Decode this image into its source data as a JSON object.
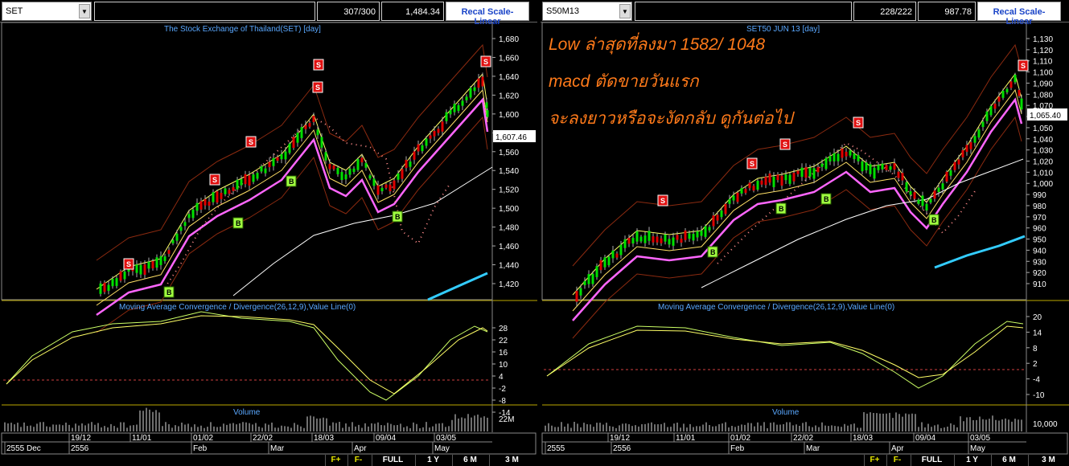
{
  "left": {
    "symbol": "SET",
    "count": "307/300",
    "price": "1,484.34",
    "recal": "Recal Scale-Linear",
    "title": "The Stock Exchange of Thailand(SET) [day]",
    "last": "1,607.46",
    "y_ticks": [
      "1,680",
      "1,660",
      "1,640",
      "1,620",
      "1,600",
      "1,580",
      "1,560",
      "1,540",
      "1,520",
      "1,500",
      "1,480",
      "1,460",
      "1,440",
      "1,420"
    ],
    "macd_title": "Moving Average Convergence / Divergence(26,12,9),Value Line(0)",
    "macd_ticks": [
      "28",
      "22",
      "16",
      "10",
      "4",
      "-2",
      "-8",
      "-14"
    ],
    "volume_title": "Volume",
    "volume_tick": "22M",
    "date_top": [
      "19/12",
      "11/01",
      "01/02",
      "22/02",
      "18/03",
      "09/04",
      "03/05"
    ],
    "date_bottom": [
      "2555 Dec",
      "2556",
      "Feb",
      "Mar",
      "Apr",
      "May"
    ],
    "signals": [
      "S",
      "S",
      "S",
      "S",
      "S",
      "S",
      "B",
      "B",
      "B",
      "B"
    ]
  },
  "right": {
    "symbol": "S50M13",
    "count": "228/222",
    "price": "987.78",
    "recal": "Recal Scale-Linear",
    "title": "SET50 JUN 13   [day]",
    "last": "1,065.40",
    "y_ticks": [
      "1,130",
      "1,120",
      "1,110",
      "1,100",
      "1,090",
      "1,080",
      "1,070",
      "1,060",
      "1,050",
      "1,040",
      "1,030",
      "1,020",
      "1,010",
      "1,000",
      "990",
      "980",
      "970",
      "960",
      "950",
      "940",
      "930",
      "920",
      "910"
    ],
    "macd_title": "Moving Average Convergence / Divergence(26,12,9),Value Line(0)",
    "macd_ticks": [
      "20",
      "14",
      "8",
      "2",
      "-4",
      "-10"
    ],
    "volume_title": "Volume",
    "volume_tick": "10,000",
    "date_top": [
      "19/12",
      "11/01",
      "01/02",
      "22/02",
      "18/03",
      "09/04",
      "03/05"
    ],
    "date_bottom": [
      "2555",
      "2556",
      "Feb",
      "Mar",
      "Apr",
      "May"
    ],
    "annotation": [
      "Low ล่าสุดที่ลงมา 1582/ 1048",
      "macd ตัดขายวันแรก",
      "จะลงยาวหรือจะงัดกลับ ดูกันต่อไป"
    ],
    "signals": [
      "S",
      "S",
      "S",
      "S",
      "S",
      "B",
      "B",
      "B",
      "B"
    ]
  },
  "buttons": [
    "F+",
    "F-",
    "FULL",
    "1 Y",
    "6 M",
    "3 M"
  ],
  "colors": {
    "up": "#00e000",
    "down": "#e00000",
    "ma_short": "#ffff66",
    "ma_long": "#ffffff",
    "ma_mid": "#ff66ff",
    "band": "#8b2a10",
    "trend": "#33ccff",
    "annotation": "#ff7a1a"
  }
}
